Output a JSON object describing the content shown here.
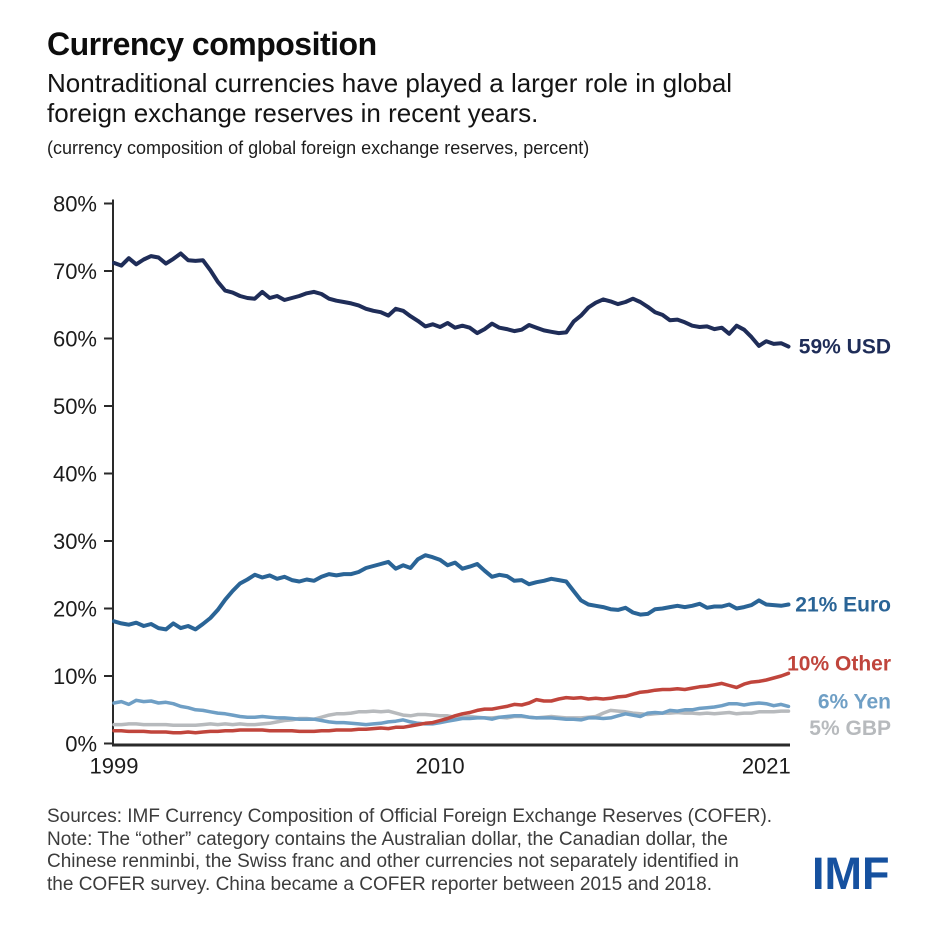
{
  "header": {
    "title": "Currency composition",
    "subtitle_lines": [
      "Nontraditional currencies have played a larger role in global",
      "foreign exchange reserves in recent years."
    ],
    "axis_note": "(currency composition of global foreign exchange reserves, percent)"
  },
  "chart_data": {
    "type": "line",
    "title": "Currency composition",
    "unit": "percent of global foreign exchange reserves",
    "x_start": 1999,
    "x_step": 0.25,
    "x_frequency": "quarterly",
    "x_tick_years": [
      1999,
      2010,
      2021
    ],
    "x_tick_labels": [
      "1999",
      "2010",
      "2021"
    ],
    "ylim": [
      0,
      80
    ],
    "y_tick_step": 10,
    "y_tick_suffix": "%",
    "grid": false,
    "axis_color": "#2a2a2a",
    "series": [
      {
        "name": "USD",
        "end_label": "59% USD",
        "color": "#1f2d58",
        "values": [
          71.2,
          70.8,
          71.9,
          71.0,
          71.7,
          72.2,
          72.0,
          71.1,
          71.8,
          72.6,
          71.6,
          71.5,
          71.6,
          70.1,
          68.4,
          67.1,
          66.8,
          66.3,
          66.0,
          65.9,
          66.9,
          66.0,
          66.3,
          65.7,
          66.0,
          66.3,
          66.7,
          66.9,
          66.6,
          65.9,
          65.6,
          65.4,
          65.2,
          64.9,
          64.4,
          64.1,
          63.9,
          63.4,
          64.4,
          64.1,
          63.3,
          62.6,
          61.8,
          62.1,
          61.7,
          62.3,
          61.6,
          61.9,
          61.6,
          60.8,
          61.4,
          62.2,
          61.6,
          61.4,
          61.1,
          61.3,
          62.0,
          61.6,
          61.2,
          61.0,
          60.8,
          60.9,
          62.5,
          63.4,
          64.6,
          65.3,
          65.8,
          65.5,
          65.1,
          65.4,
          65.9,
          65.4,
          64.7,
          63.9,
          63.5,
          62.7,
          62.8,
          62.4,
          61.9,
          61.7,
          61.8,
          61.4,
          61.6,
          60.7,
          61.9,
          61.3,
          60.2,
          58.9,
          59.6,
          59.2,
          59.3,
          58.8
        ]
      },
      {
        "name": "Euro",
        "end_label": "21% Euro",
        "color": "#2a6496",
        "values": [
          18.1,
          17.8,
          17.6,
          17.9,
          17.4,
          17.7,
          17.1,
          16.9,
          17.8,
          17.1,
          17.4,
          16.9,
          17.7,
          18.6,
          19.8,
          21.3,
          22.6,
          23.7,
          24.3,
          25.0,
          24.6,
          24.9,
          24.4,
          24.7,
          24.2,
          24.0,
          24.3,
          24.1,
          24.7,
          25.1,
          24.9,
          25.1,
          25.1,
          25.4,
          26.0,
          26.3,
          26.6,
          26.9,
          25.9,
          26.4,
          26.0,
          27.3,
          27.9,
          27.6,
          27.2,
          26.4,
          26.8,
          25.9,
          26.2,
          26.6,
          25.6,
          24.7,
          25.0,
          24.8,
          24.1,
          24.2,
          23.6,
          23.9,
          24.1,
          24.4,
          24.2,
          24.0,
          22.6,
          21.2,
          20.6,
          20.4,
          20.2,
          19.9,
          19.8,
          20.1,
          19.4,
          19.1,
          19.2,
          19.9,
          20.0,
          20.2,
          20.4,
          20.2,
          20.4,
          20.7,
          20.1,
          20.3,
          20.3,
          20.6,
          20.0,
          20.2,
          20.5,
          21.2,
          20.6,
          20.5,
          20.4,
          20.6
        ]
      },
      {
        "name": "Other",
        "end_label": "10% Other",
        "color": "#c0453c",
        "values": [
          1.9,
          1.9,
          1.8,
          1.8,
          1.8,
          1.7,
          1.7,
          1.7,
          1.6,
          1.6,
          1.7,
          1.6,
          1.7,
          1.8,
          1.8,
          1.9,
          1.9,
          2.0,
          2.0,
          2.0,
          2.0,
          1.9,
          1.9,
          1.9,
          1.9,
          1.8,
          1.8,
          1.8,
          1.9,
          1.9,
          2.0,
          2.0,
          2.0,
          2.1,
          2.1,
          2.2,
          2.3,
          2.2,
          2.4,
          2.4,
          2.6,
          2.8,
          3.0,
          3.1,
          3.4,
          3.7,
          4.1,
          4.4,
          4.6,
          4.9,
          5.1,
          5.1,
          5.3,
          5.5,
          5.8,
          5.7,
          6.0,
          6.5,
          6.3,
          6.3,
          6.6,
          6.8,
          6.7,
          6.8,
          6.6,
          6.7,
          6.6,
          6.7,
          6.9,
          7.0,
          7.3,
          7.6,
          7.7,
          7.9,
          8.0,
          8.0,
          8.1,
          8.0,
          8.2,
          8.4,
          8.5,
          8.7,
          8.9,
          8.6,
          8.3,
          8.8,
          9.1,
          9.2,
          9.4,
          9.7,
          10.0,
          10.4
        ]
      },
      {
        "name": "Yen",
        "end_label": "6% Yen",
        "color": "#6f9fc5",
        "values": [
          6.0,
          6.2,
          5.8,
          6.4,
          6.2,
          6.3,
          6.0,
          6.1,
          5.9,
          5.5,
          5.3,
          5.0,
          4.9,
          4.7,
          4.5,
          4.4,
          4.2,
          4.0,
          3.9,
          3.9,
          4.0,
          3.9,
          3.8,
          3.8,
          3.7,
          3.6,
          3.6,
          3.6,
          3.4,
          3.2,
          3.1,
          3.1,
          3.0,
          2.9,
          2.8,
          2.9,
          3.0,
          3.2,
          3.3,
          3.5,
          3.2,
          3.0,
          2.9,
          2.9,
          3.1,
          3.3,
          3.5,
          3.7,
          3.7,
          3.8,
          3.8,
          3.6,
          3.9,
          4.0,
          4.1,
          4.1,
          3.9,
          3.8,
          3.8,
          3.8,
          3.7,
          3.6,
          3.6,
          3.5,
          3.8,
          3.8,
          3.7,
          3.8,
          4.1,
          4.4,
          4.2,
          4.0,
          4.5,
          4.6,
          4.5,
          4.9,
          4.8,
          5.0,
          5.0,
          5.2,
          5.3,
          5.4,
          5.6,
          5.9,
          5.9,
          5.7,
          5.9,
          6.0,
          5.9,
          5.6,
          5.8,
          5.5
        ]
      },
      {
        "name": "GBP",
        "end_label": "5% GBP",
        "color": "#b7babd",
        "values": [
          2.8,
          2.8,
          2.9,
          2.9,
          2.8,
          2.8,
          2.8,
          2.8,
          2.7,
          2.7,
          2.7,
          2.7,
          2.8,
          2.9,
          2.8,
          2.9,
          2.8,
          2.9,
          2.8,
          2.8,
          2.9,
          3.0,
          3.2,
          3.4,
          3.5,
          3.7,
          3.7,
          3.6,
          3.9,
          4.2,
          4.4,
          4.4,
          4.5,
          4.7,
          4.7,
          4.8,
          4.7,
          4.8,
          4.5,
          4.2,
          4.1,
          4.3,
          4.3,
          4.2,
          4.1,
          4.1,
          3.9,
          3.9,
          4.0,
          3.9,
          3.8,
          3.8,
          3.9,
          3.8,
          4.0,
          4.0,
          3.9,
          3.8,
          3.9,
          4.0,
          3.9,
          3.8,
          3.8,
          3.8,
          3.9,
          4.0,
          4.5,
          4.9,
          4.8,
          4.7,
          4.5,
          4.4,
          4.3,
          4.4,
          4.5,
          4.5,
          4.6,
          4.5,
          4.5,
          4.4,
          4.5,
          4.4,
          4.5,
          4.6,
          4.4,
          4.5,
          4.5,
          4.7,
          4.7,
          4.7,
          4.8,
          4.8
        ]
      }
    ]
  },
  "footer": {
    "lines": [
      "Sources: IMF Currency Composition of Official Foreign Exchange Reserves (COFER).",
      "Note: The “other” category contains the Australian dollar, the Canadian dollar, the",
      "Chinese renminbi, the Swiss franc and other currencies not separately identified in",
      "the COFER survey. China became a COFER reporter between 2015 and 2018."
    ],
    "logo_text": "IMF",
    "logo_color": "#16519f"
  }
}
